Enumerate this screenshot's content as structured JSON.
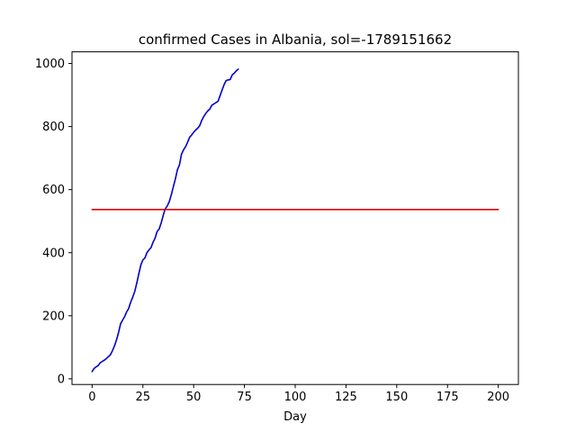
{
  "chart_data": {
    "type": "line",
    "title": "confirmed Cases in Albania, sol=-1789151662",
    "xlabel": "Day",
    "ylabel": "",
    "xlim": [
      -9.9,
      209.9
    ],
    "ylim": [
      -18,
      1037
    ],
    "xticks": [
      0,
      25,
      50,
      75,
      100,
      125,
      150,
      175,
      200
    ],
    "yticks": [
      0,
      200,
      400,
      600,
      800,
      1000
    ],
    "grid": false,
    "series": [
      {
        "color": "#0000cc",
        "x": [
          0,
          1,
          2,
          3,
          4,
          5,
          6,
          7,
          8,
          9,
          10,
          11,
          12,
          13,
          14,
          15,
          16,
          17,
          18,
          19,
          20,
          21,
          22,
          23,
          24,
          25,
          26,
          27,
          28,
          29,
          30,
          31,
          32,
          33,
          34,
          35,
          36,
          37,
          38,
          39,
          40,
          41,
          42,
          43,
          44,
          45,
          46,
          47,
          48,
          49,
          50,
          51,
          52,
          53,
          54,
          55,
          56,
          57,
          58,
          59,
          60,
          61,
          62,
          63,
          64,
          65,
          66,
          67,
          68,
          69,
          70,
          71,
          72
        ],
        "y": [
          23,
          33,
          38,
          42,
          51,
          55,
          59,
          64,
          70,
          76,
          89,
          104,
          123,
          146,
          174,
          186,
          197,
          212,
          223,
          243,
          259,
          277,
          304,
          333,
          361,
          377,
          383,
          400,
          409,
          416,
          433,
          446,
          467,
          475,
          494,
          518,
          539,
          548,
          562,
          584,
          609,
          634,
          663,
          678,
          712,
          726,
          736,
          750,
          766,
          773,
          782,
          789,
          795,
          803,
          820,
          832,
          842,
          850,
          856,
          868,
          872,
          876,
          880,
          898,
          916,
          933,
          946,
          948,
          949,
          964,
          969,
          977,
          982
        ]
      },
      {
        "color": "#dd0000",
        "x": [
          0,
          200
        ],
        "y": [
          537,
          537
        ]
      }
    ]
  }
}
